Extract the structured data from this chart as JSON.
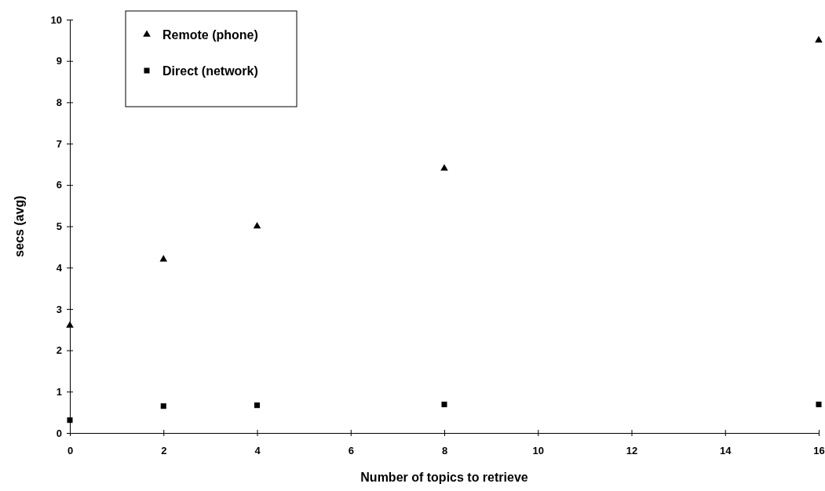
{
  "chart_data": {
    "type": "scatter",
    "xlabel": "Number of topics to retrieve",
    "ylabel": "secs (avg)",
    "x": [
      0,
      2,
      4,
      8,
      16
    ],
    "series": [
      {
        "name": "Remote (phone)",
        "color": "#000000",
        "marker": "triangle",
        "values": [
          2.6,
          4.2,
          5.0,
          6.4,
          9.5
        ]
      },
      {
        "name": "Direct (network)",
        "color": "#000000",
        "marker": "square",
        "values": [
          0.31,
          0.65,
          0.67,
          0.69,
          0.69
        ]
      }
    ],
    "xlim": [
      0,
      16
    ],
    "xticks": [
      0,
      2,
      4,
      6,
      8,
      10,
      12,
      14,
      16
    ],
    "ylim": [
      0,
      10
    ],
    "yticks": [
      0,
      1,
      2,
      3,
      4,
      5,
      6,
      7,
      8,
      9,
      10
    ],
    "grid": false,
    "legend": "top left"
  }
}
